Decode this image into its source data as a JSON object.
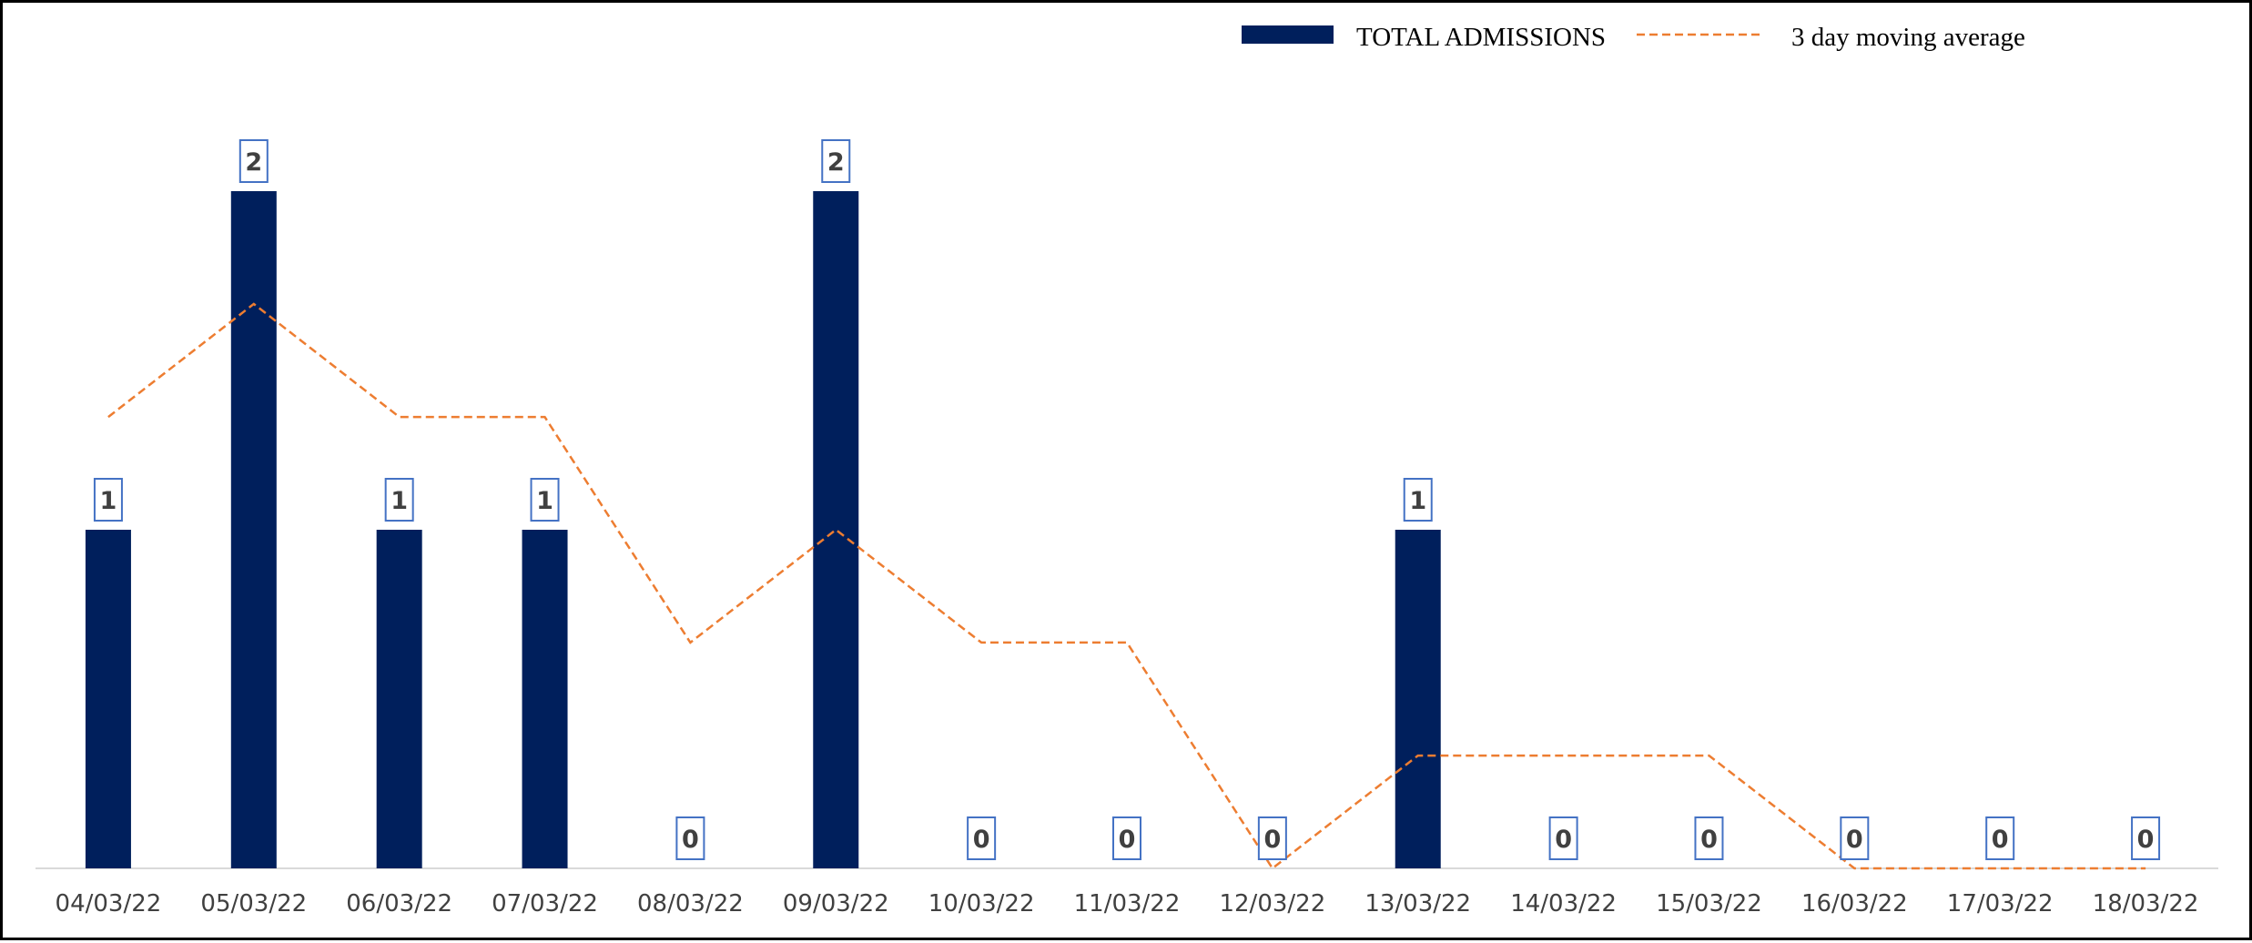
{
  "chart_data": {
    "type": "bar",
    "title": "",
    "xlabel": "",
    "ylabel": "",
    "categories": [
      "04/03/22",
      "05/03/22",
      "06/03/22",
      "07/03/22",
      "08/03/22",
      "09/03/22",
      "10/03/22",
      "11/03/22",
      "12/03/22",
      "13/03/22",
      "14/03/22",
      "15/03/22",
      "16/03/22",
      "17/03/22",
      "18/03/22"
    ],
    "ylim": [
      0,
      2
    ],
    "grid": false,
    "legend_position": "top-right",
    "series": [
      {
        "name": "TOTAL ADMISSIONS",
        "type": "bar",
        "color": "#001f5c",
        "values": [
          1,
          2,
          1,
          1,
          0,
          2,
          0,
          0,
          0,
          1,
          0,
          0,
          0,
          0,
          0
        ],
        "data_labels": [
          "1",
          "2",
          "1",
          "1",
          "0",
          "2",
          "0",
          "0",
          "0",
          "1",
          "0",
          "0",
          "0",
          "0",
          "0"
        ]
      },
      {
        "name": "3 day moving average",
        "type": "line",
        "style": "dashed",
        "color": "#ed7d31",
        "values": [
          1.333,
          1.667,
          1.333,
          1.333,
          0.667,
          1,
          0.667,
          0.667,
          0,
          0.333,
          0.333,
          0.333,
          0,
          0,
          0
        ]
      }
    ]
  }
}
